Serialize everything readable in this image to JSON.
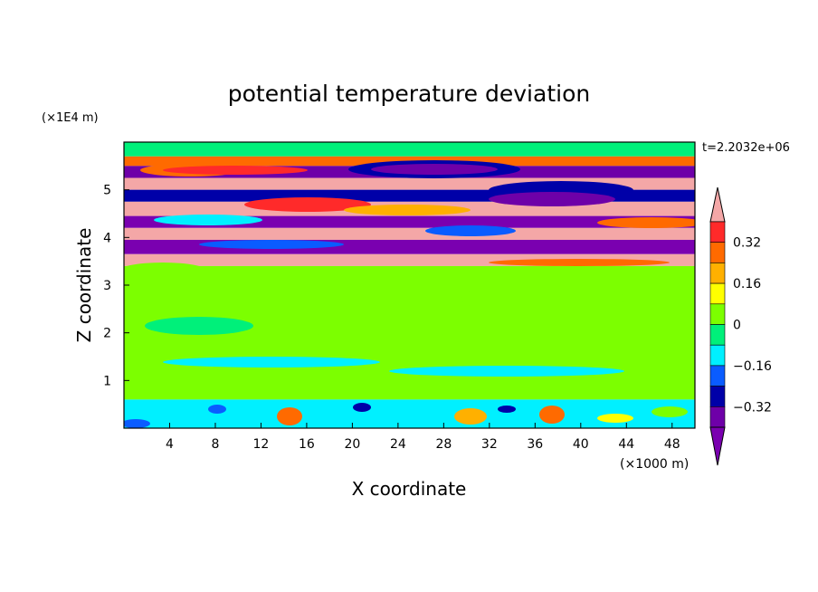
{
  "chart_data": {
    "type": "heatmap",
    "title": "potential temperature deviation",
    "time_label": "t=2.2032e+06",
    "xlabel": "X coordinate",
    "ylabel": "Z coordinate",
    "x_unit": "(×1000 m)",
    "y_unit": "(×1E4 m)",
    "xlim": [
      0,
      50
    ],
    "ylim": [
      0,
      6
    ],
    "x_ticks": [
      4,
      8,
      12,
      16,
      20,
      24,
      28,
      32,
      36,
      40,
      44,
      48
    ],
    "y_ticks": [
      1,
      2,
      3,
      4,
      5
    ],
    "colorbar": {
      "ticks": [
        "0.32",
        "0.16",
        "0",
        "−0.16",
        "−0.32"
      ],
      "levels": [
        0.4,
        0.32,
        0.24,
        0.16,
        0.08,
        0,
        -0.08,
        -0.16,
        -0.24,
        -0.32,
        -0.4
      ],
      "colors": [
        "#ff2a2a",
        "#ff6a00",
        "#ffb000",
        "#ffff00",
        "#7cff00",
        "#00f07a",
        "#00f0ff",
        "#0a5cff",
        "#0000a8",
        "#6e00a8"
      ],
      "over_color": "#f4a7a7",
      "under_color": "#7a00b0"
    },
    "bands": [
      {
        "z_min": 5.7,
        "z_max": 6.0,
        "value": 0.0
      },
      {
        "z_min": 5.5,
        "z_max": 5.7,
        "value": 0.3
      },
      {
        "z_min": 5.25,
        "z_max": 5.5,
        "value": -0.4
      },
      {
        "z_min": 5.0,
        "z_max": 5.25,
        "value": 0.45
      },
      {
        "z_min": 4.75,
        "z_max": 5.0,
        "value": -0.3
      },
      {
        "z_min": 4.45,
        "z_max": 4.75,
        "value": 0.45
      },
      {
        "z_min": 4.2,
        "z_max": 4.45,
        "value": -0.45
      },
      {
        "z_min": 3.95,
        "z_max": 4.2,
        "value": 0.45
      },
      {
        "z_min": 3.65,
        "z_max": 3.95,
        "value": -0.45
      },
      {
        "z_min": 3.4,
        "z_max": 3.65,
        "value": 0.45
      },
      {
        "z_min": 0.6,
        "z_max": 3.4,
        "value": 0.03
      },
      {
        "z_min": 0.0,
        "z_max": 0.6,
        "value": -0.1
      }
    ]
  }
}
